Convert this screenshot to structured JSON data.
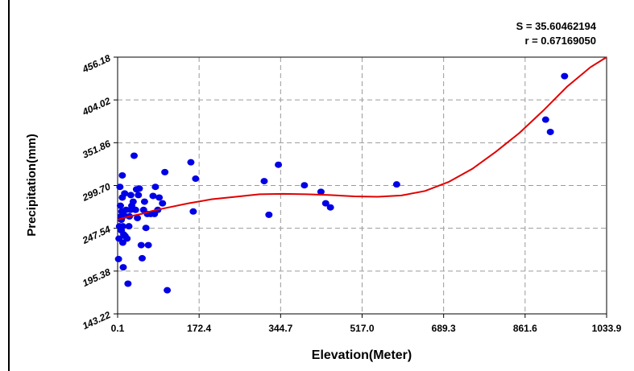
{
  "chart_data": {
    "type": "scatter",
    "title": "",
    "xlabel": "Elevation(Meter)",
    "ylabel": "Precipitation(mm)",
    "stats": [
      "S = 35.60462194",
      "r = 0.67169050"
    ],
    "xlim": [
      0.1,
      1033.9
    ],
    "ylim": [
      143.22,
      456.18
    ],
    "x_ticks": [
      "0.1",
      "172.4",
      "344.7",
      "517.0",
      "689.3",
      "861.6",
      "1033.9"
    ],
    "y_ticks": [
      "143.22",
      "195.38",
      "247.54",
      "299.70",
      "351.86",
      "404.02",
      "456.18"
    ],
    "grid": true,
    "point_color": "#0000e6",
    "fit_color": "#e00000",
    "series": [
      {
        "x": [
          2,
          3,
          4,
          5,
          6,
          7,
          8,
          8,
          9,
          10,
          10,
          11,
          11,
          12,
          12,
          13,
          14,
          15,
          16,
          18,
          20,
          22,
          24,
          25,
          27,
          28,
          30,
          33,
          35,
          38,
          40,
          42,
          44,
          46,
          50,
          52,
          55,
          57,
          60,
          63,
          65,
          70,
          75,
          78,
          80,
          85,
          88,
          95,
          100,
          105,
          155,
          160,
          165,
          310,
          320,
          340,
          395,
          430,
          440,
          450,
          590,
          905,
          915,
          945
        ],
        "y": [
          210,
          235,
          250,
          298,
          275,
          262,
          258,
          245,
          268,
          312,
          285,
          230,
          250,
          200,
          263,
          240,
          263,
          290,
          238,
          270,
          235,
          180,
          250,
          262,
          270,
          288,
          275,
          280,
          336,
          270,
          295,
          260,
          288,
          296,
          227,
          211,
          270,
          280,
          248,
          265,
          227,
          265,
          287,
          265,
          298,
          270,
          285,
          278,
          316,
          172,
          328,
          268,
          308,
          305,
          264,
          325,
          300,
          292,
          278,
          273,
          301,
          380,
          365,
          433
        ]
      }
    ],
    "fit_curve": {
      "x": [
        0,
        25,
        50,
        75,
        100,
        150,
        200,
        250,
        300,
        350,
        400,
        450,
        500,
        550,
        600,
        650,
        700,
        750,
        800,
        850,
        900,
        950,
        1000,
        1033.9
      ],
      "y": [
        258,
        262,
        265,
        269,
        272,
        278,
        283,
        286,
        289,
        289.5,
        289,
        288,
        286.5,
        286,
        287.5,
        293,
        304,
        320,
        341,
        364,
        391,
        420,
        444,
        456.18
      ]
    }
  }
}
